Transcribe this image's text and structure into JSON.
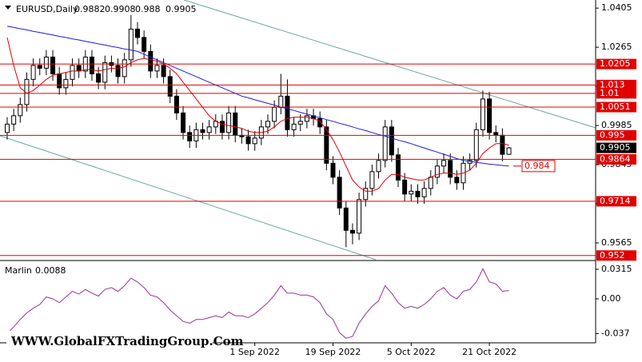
{
  "chart_data": [
    {
      "type": "candlestick",
      "title": "EURUSD,Daily",
      "categories": [
        null,
        null,
        null,
        null,
        null,
        null,
        null,
        null,
        null,
        null,
        null,
        null,
        null,
        null,
        null,
        null,
        null,
        null,
        null,
        null,
        null,
        null,
        null,
        null,
        null,
        null,
        null,
        null,
        null,
        null,
        null,
        null,
        null,
        null,
        null,
        null,
        null,
        null,
        "1 Sep 2022",
        null,
        null,
        null,
        null,
        null,
        null,
        null,
        null,
        null,
        null,
        null,
        "19 Sep 2022",
        null,
        null,
        null,
        null,
        null,
        null,
        null,
        null,
        null,
        null,
        null,
        "5 Oct 2022",
        null,
        null,
        null,
        null,
        null,
        null,
        null,
        null,
        null,
        null,
        null,
        "21 Oct 2022",
        null,
        null,
        null
      ],
      "open": [
        0.996,
        0.999,
        1.002,
        1.006,
        1.015,
        1.02,
        1.019,
        1.023,
        1.017,
        1.012,
        1.015,
        1.02,
        1.018,
        1.023,
        1.017,
        1.014,
        1.021,
        1.02,
        1.016,
        1.022,
        1.033,
        1.03,
        1.025,
        1.018,
        1.02,
        1.016,
        1.009,
        1.003,
        0.996,
        0.993,
        0.997,
        0.996,
        0.998,
        1.0,
        0.996,
        1.003,
        0.995,
        0.9945,
        0.992,
        0.994,
        0.998,
        1.0,
        1.005,
        1.009,
        0.997,
        0.999,
        1.0,
        1.002,
        1.001,
        0.998,
        0.985,
        0.98,
        0.969,
        0.961,
        0.96,
        0.972,
        0.976,
        0.982,
        0.986,
        0.998,
        0.988,
        0.979,
        0.974,
        0.975,
        0.973,
        0.976,
        0.98,
        0.984,
        0.986,
        0.98,
        0.978,
        0.985,
        0.986,
        0.997,
        1.008,
        0.996,
        0.995,
        0.9882
      ],
      "high": [
        1.0015,
        1.0045,
        1.0085,
        1.0175,
        1.0225,
        1.0225,
        1.0255,
        1.0255,
        1.0195,
        1.0175,
        1.0225,
        1.0225,
        1.0255,
        1.0255,
        1.0195,
        1.0235,
        1.0235,
        1.0225,
        1.0245,
        1.038,
        1.0355,
        1.0325,
        1.0275,
        1.0225,
        1.0225,
        1.0185,
        1.0115,
        1.0055,
        0.9985,
        0.9995,
        0.9995,
        1.0005,
        1.0025,
        1.0025,
        1.0055,
        1.0055,
        0.9975,
        0.997,
        0.9965,
        1.0005,
        1.0025,
        1.0075,
        1.017,
        1.015,
        1.0015,
        1.0025,
        1.0045,
        1.0045,
        1.0035,
        1.0005,
        0.9875,
        0.9825,
        0.9715,
        0.9635,
        0.9745,
        0.9785,
        0.9845,
        0.9885,
        1.0005,
        1.0005,
        0.9905,
        0.9815,
        0.9775,
        0.9775,
        0.9785,
        0.9825,
        0.9865,
        0.9885,
        0.9885,
        0.9825,
        0.9875,
        0.9885,
        0.9995,
        1.011,
        1.0105,
        0.9985,
        0.9975,
        0.9908
      ],
      "low": [
        0.9935,
        0.9965,
        0.9995,
        1.0035,
        1.0125,
        1.0165,
        1.0165,
        1.0145,
        1.0095,
        1.0095,
        1.0125,
        1.0155,
        1.0155,
        1.0145,
        1.0115,
        1.0115,
        1.0175,
        1.0135,
        1.0135,
        1.0195,
        1.0275,
        1.0225,
        1.0155,
        1.0155,
        1.0135,
        1.0065,
        1.0005,
        0.9935,
        0.9905,
        0.9905,
        0.9935,
        0.9935,
        0.9955,
        0.9935,
        0.9935,
        0.9925,
        0.992,
        0.9895,
        0.9895,
        0.9915,
        0.9955,
        0.9975,
        1.0025,
        0.9945,
        0.9945,
        0.9965,
        0.9975,
        0.9985,
        0.9955,
        0.9825,
        0.9775,
        0.9665,
        0.955,
        0.956,
        0.9575,
        0.9695,
        0.9735,
        0.9795,
        0.9835,
        0.9855,
        0.9765,
        0.9715,
        0.9715,
        0.9705,
        0.9705,
        0.9735,
        0.9775,
        0.9815,
        0.9775,
        0.9755,
        0.9755,
        0.9825,
        0.9835,
        0.9945,
        0.9935,
        0.9925,
        0.9857,
        0.988
      ],
      "close": [
        0.999,
        1.002,
        1.006,
        1.015,
        1.02,
        1.019,
        1.023,
        1.017,
        1.012,
        1.015,
        1.02,
        1.018,
        1.023,
        1.017,
        1.014,
        1.021,
        1.02,
        1.016,
        1.022,
        1.033,
        1.03,
        1.025,
        1.018,
        1.02,
        1.016,
        1.009,
        1.003,
        0.996,
        0.993,
        0.997,
        0.996,
        0.998,
        1.0,
        0.996,
        1.003,
        0.995,
        0.9945,
        0.992,
        0.994,
        0.998,
        1.0,
        1.005,
        1.009,
        0.997,
        0.999,
        1.0,
        1.002,
        1.001,
        0.998,
        0.985,
        0.98,
        0.969,
        0.961,
        0.96,
        0.972,
        0.976,
        0.982,
        0.986,
        0.998,
        0.988,
        0.979,
        0.974,
        0.975,
        0.973,
        0.976,
        0.98,
        0.984,
        0.986,
        0.98,
        0.978,
        0.985,
        0.986,
        0.997,
        1.008,
        0.996,
        0.995,
        0.9882,
        0.9905
      ],
      "series": [
        {
          "color": "#e00000",
          "values": [
            1.03,
            1.02,
            1.012,
            1.01,
            1.011,
            1.013,
            1.015,
            1.0165,
            1.017,
            1.0175,
            1.018,
            1.018,
            1.0185,
            1.0185,
            1.018,
            1.0185,
            1.019,
            1.019,
            1.0195,
            1.021,
            1.022,
            1.0225,
            1.022,
            1.0215,
            1.0205,
            1.019,
            1.017,
            1.014,
            1.011,
            1.008,
            1.005,
            1.002,
            1.0,
            0.999,
            0.9985,
            0.998,
            0.9975,
            0.9965,
            0.996,
            0.996,
            0.9965,
            0.998,
            1.0,
            1.001,
            1.0015,
            1.0015,
            1.0015,
            1.001,
            1.0,
            0.997,
            0.9935,
            0.989,
            0.984,
            0.979,
            0.9765,
            0.975,
            0.975,
            0.976,
            0.979,
            0.981,
            0.981,
            0.98,
            0.9795,
            0.979,
            0.979,
            0.98,
            0.981,
            0.9815,
            0.9815,
            0.981,
            0.9815,
            0.9825,
            0.985,
            0.9885,
            0.9905,
            0.992,
            0.992,
            0.9915
          ]
        },
        {
          "color": "#1c1cd8",
          "values": [
            1.034,
            1.0336,
            1.0331,
            1.0327,
            1.0322,
            1.0318,
            1.0313,
            1.0309,
            1.0304,
            1.03,
            1.0295,
            1.0291,
            1.0286,
            1.0282,
            1.0277,
            1.0273,
            1.0268,
            1.0264,
            1.0259,
            1.0255,
            1.025,
            1.024,
            1.023,
            1.022,
            1.021,
            1.02,
            1.019,
            1.018,
            1.017,
            1.016,
            1.015,
            1.014,
            1.013,
            1.012,
            1.011,
            1.01,
            1.009,
            1.0084,
            1.0077,
            1.0071,
            1.0064,
            1.0058,
            1.0051,
            1.0045,
            1.0039,
            1.0032,
            1.0026,
            1.0019,
            1.0013,
            1.0006,
            1.0,
            0.9993,
            0.9987,
            0.998,
            0.9973,
            0.9967,
            0.996,
            0.9953,
            0.9947,
            0.994,
            0.9933,
            0.9927,
            0.992,
            0.9912,
            0.9905,
            0.9897,
            0.989,
            0.9882,
            0.9875,
            0.9867,
            0.986,
            0.9857,
            0.9853,
            0.985,
            0.9847,
            0.9845,
            0.9842,
            0.984
          ]
        }
      ],
      "levels": [
        1.0205,
        1.013,
        1.01,
        1.0051,
        0.995,
        0.9864,
        0.9714,
        0.952
      ],
      "level_color": "#e00000",
      "ylim": [
        0.9505,
        1.0434
      ],
      "yticks": [
        1.0405,
        1.0265,
        1.0125,
        0.9985,
        0.9845,
        0.9705,
        0.9565
      ]
    },
    {
      "type": "line",
      "title": "Marlin",
      "color": "#9b309b",
      "values": [
        -0.037,
        -0.03,
        -0.022,
        -0.015,
        -0.01,
        -0.006,
        0.002,
        0.0,
        -0.004,
        0.002,
        0.008,
        0.005,
        0.01,
        0.006,
        0.003,
        0.01,
        0.012,
        0.008,
        0.014,
        0.022,
        0.018,
        0.012,
        0.004,
        0.002,
        -0.004,
        -0.012,
        -0.018,
        -0.024,
        -0.026,
        -0.022,
        -0.022,
        -0.02,
        -0.018,
        -0.02,
        -0.014,
        -0.018,
        -0.018,
        -0.02,
        -0.016,
        -0.01,
        -0.004,
        0.004,
        0.014,
        0.006,
        0.006,
        0.004,
        0.004,
        0.002,
        -0.004,
        -0.016,
        -0.022,
        -0.036,
        -0.042,
        -0.04,
        -0.026,
        -0.016,
        -0.008,
        -0.002,
        0.014,
        0.006,
        -0.004,
        -0.01,
        -0.008,
        -0.01,
        -0.006,
        0.0,
        0.008,
        0.012,
        0.004,
        0.0,
        0.008,
        0.01,
        0.018,
        0.032,
        0.018,
        0.016,
        0.008,
        0.0088
      ],
      "ylim": [
        -0.046,
        0.04
      ],
      "yticks": [
        0.0315,
        {
          "value": 0,
          "label": "0.00"
        },
        -0.037
      ]
    }
  ],
  "watermark": "WWW.GlobalFXTradingGroup.Com"
}
